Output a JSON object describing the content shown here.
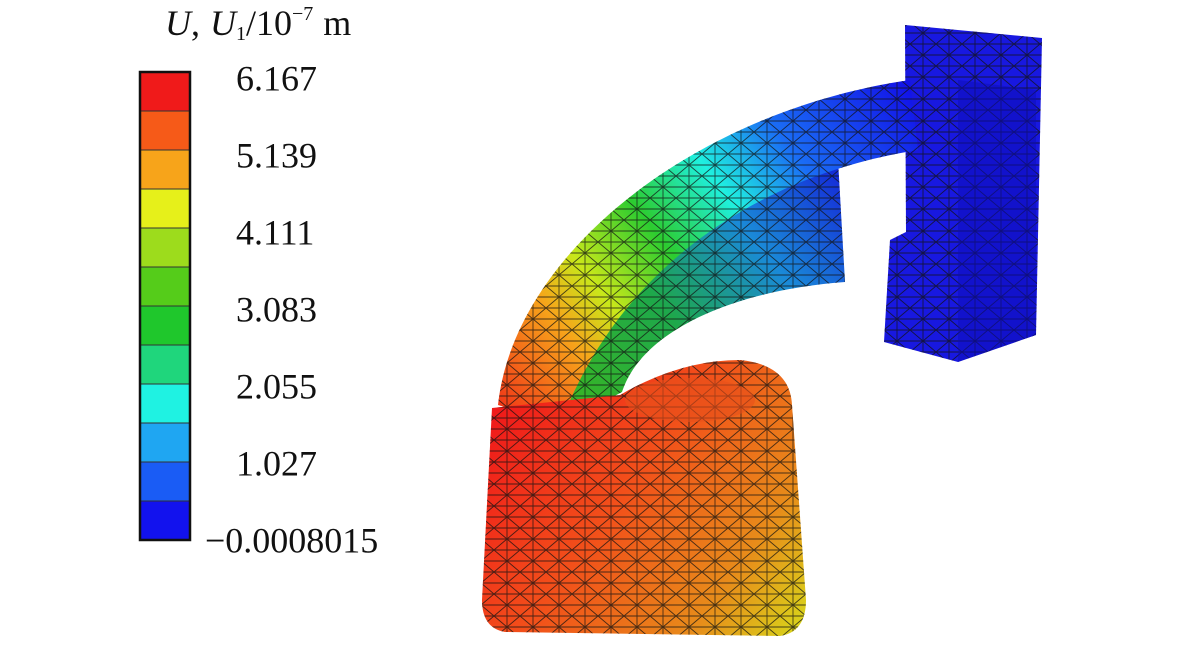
{
  "legend": {
    "title": [
      "U",
      ",",
      "U",
      "1",
      "/10",
      "−7",
      "m"
    ],
    "labels": [
      "6.167",
      "5.139",
      "4.111",
      "3.083",
      "2.055",
      "1.027",
      "−0.0008015"
    ],
    "colors": [
      "#f01a1a",
      "#f65a18",
      "#f7a41a",
      "#e6f01a",
      "#9ddc1c",
      "#55cc1a",
      "#1fc72c",
      "#1fd67c",
      "#1ff2e2",
      "#1fa6f2",
      "#1a5cf5",
      "#1212ee"
    ]
  }
}
